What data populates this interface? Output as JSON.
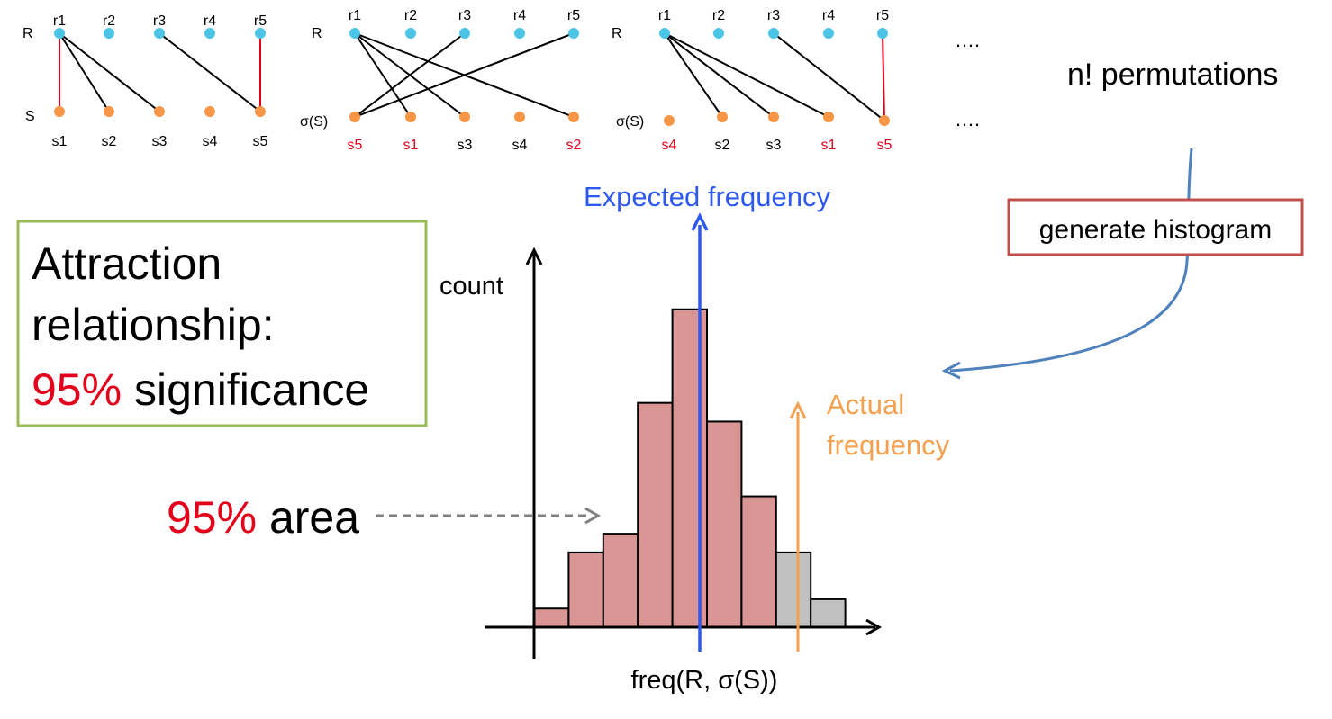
{
  "graphs": [
    {
      "left_label": "R",
      "right_label": "S",
      "r_labels": [
        "r1",
        "r2",
        "r3",
        "r4",
        "r5"
      ],
      "s_labels": [
        "s1",
        "s2",
        "s3",
        "s4",
        "s5"
      ],
      "s_label_red": [
        false,
        false,
        false,
        false,
        false
      ],
      "edges": [
        [
          0,
          0,
          "red"
        ],
        [
          0,
          1,
          "black"
        ],
        [
          0,
          2,
          "black"
        ],
        [
          2,
          4,
          "black"
        ],
        [
          4,
          4,
          "red"
        ]
      ]
    },
    {
      "left_label": "R",
      "right_label": "σ(S)",
      "r_labels": [
        "r1",
        "r2",
        "r3",
        "r4",
        "r5"
      ],
      "s_labels": [
        "s5",
        "s1",
        "s3",
        "s4",
        "s2"
      ],
      "s_label_red": [
        true,
        true,
        false,
        false,
        true
      ],
      "edges": [
        [
          0,
          1,
          "black"
        ],
        [
          0,
          2,
          "black"
        ],
        [
          0,
          4,
          "black"
        ],
        [
          2,
          0,
          "black"
        ],
        [
          4,
          0,
          "black"
        ]
      ]
    },
    {
      "left_label": "R",
      "right_label": "σ(S)",
      "r_labels": [
        "r1",
        "r2",
        "r3",
        "r4",
        "r5"
      ],
      "s_labels": [
        "s4",
        "s2",
        "s3",
        "s1",
        "s5"
      ],
      "s_label_red": [
        true,
        false,
        false,
        true,
        true
      ],
      "edges": [
        [
          0,
          1,
          "black"
        ],
        [
          0,
          2,
          "black"
        ],
        [
          0,
          3,
          "black"
        ],
        [
          2,
          4,
          "black"
        ],
        [
          4,
          4,
          "red"
        ]
      ]
    }
  ],
  "ellipsis": "….",
  "permutations_label": "n! permutations",
  "generate_label": "generate histogram",
  "attraction": {
    "line1": "Attraction",
    "line2": "relationship:",
    "pct": "95%",
    "rest": " significance"
  },
  "area_label": {
    "pct": "95%",
    "rest": " area"
  },
  "expected_label": "Expected frequency",
  "actual_label_1": "Actual",
  "actual_label_2": "frequency",
  "chart_data": {
    "type": "bar",
    "title": "",
    "xlabel": "freq(R, σ(S))",
    "ylabel": "count",
    "values": [
      1,
      4,
      5,
      12,
      17,
      11,
      7,
      4,
      1.5
    ],
    "series_highlight": [
      "red",
      "red",
      "red",
      "red",
      "red",
      "red",
      "red",
      "gray",
      "gray"
    ],
    "colors": {
      "red": "#d99694",
      "gray": "#c0c0c0"
    },
    "ylim": [
      0,
      18
    ]
  },
  "colors": {
    "r_node": "#4bc4e6",
    "s_node": "#f79646",
    "red_edge": "#e3001b",
    "red_text": "#e3001b",
    "expected": "#2e59f0",
    "actual": "#f5a04e",
    "curved_arrow": "#4f81bd",
    "gen_box_border": "#c0504d",
    "attraction_box_border": "#9bbb59",
    "dashed": "#808080"
  }
}
